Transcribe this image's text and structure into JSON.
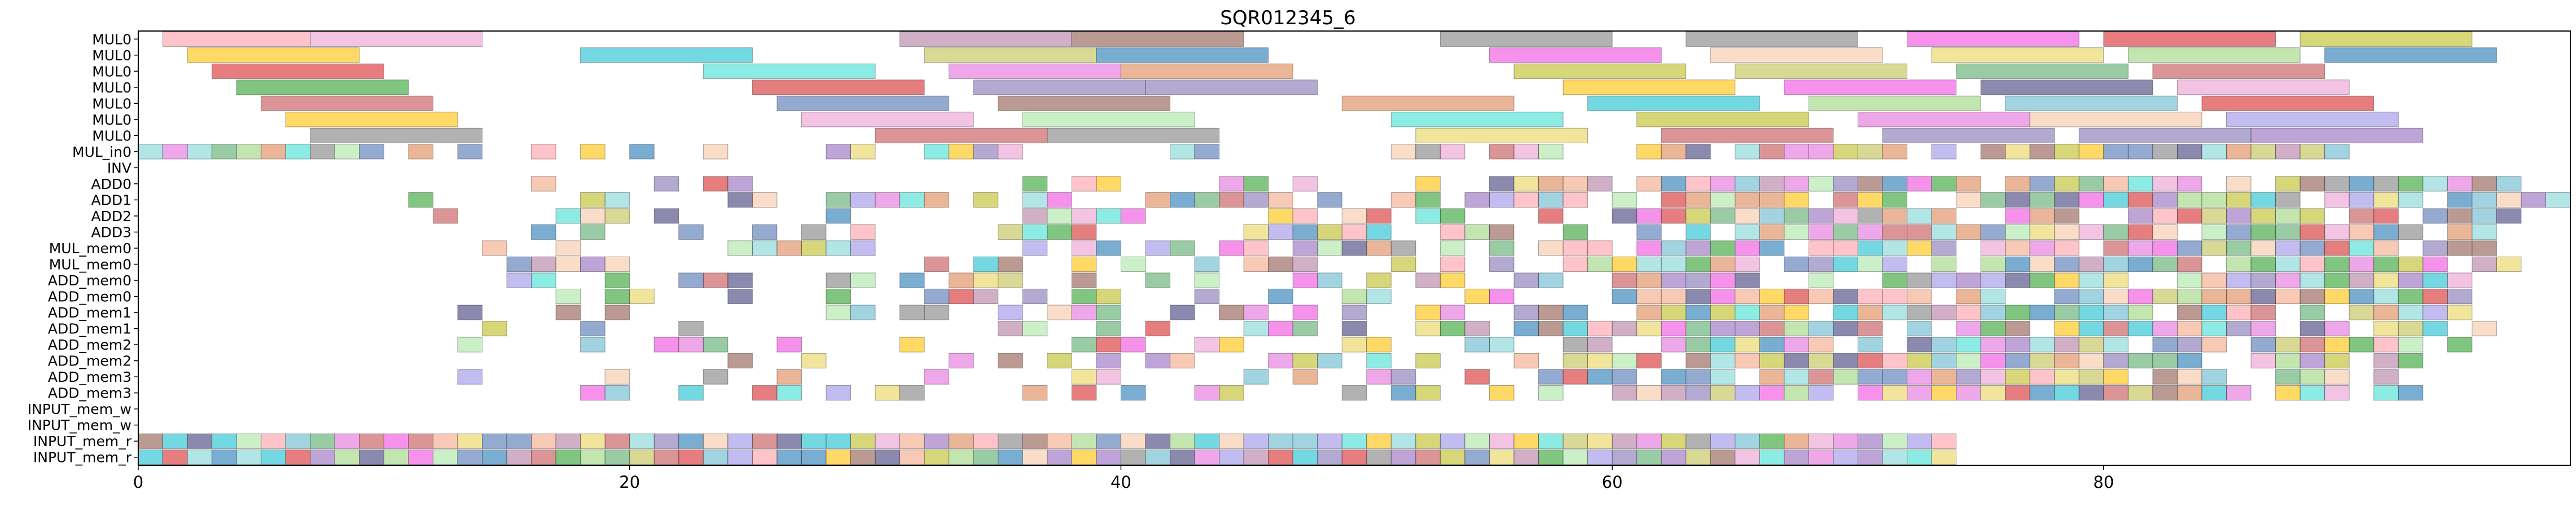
{
  "chart_data": {
    "type": "gantt",
    "title": "SQR012345_6",
    "xlabel": "",
    "ylabel": "",
    "xlim": [
      0,
      99
    ],
    "x_ticks": [
      0,
      20,
      40,
      60,
      80
    ],
    "grid": false,
    "legend": "none",
    "rows": [
      "MUL0",
      "MUL0",
      "MUL0",
      "MUL0",
      "MUL0",
      "MUL0",
      "MUL0",
      "MUL_in0",
      "INV",
      "ADD0",
      "ADD1",
      "ADD2",
      "ADD3",
      "MUL_mem0",
      "MUL_mem0",
      "ADD_mem0",
      "ADD_mem0",
      "ADD_mem1",
      "ADD_mem1",
      "ADD_mem2",
      "ADD_mem2",
      "ADD_mem3",
      "ADD_mem3",
      "INPUT_mem_w",
      "INPUT_mem_w",
      "INPUT_mem_r",
      "INPUT_mem_r"
    ],
    "palette": [
      "#7fd4d4",
      "#f4a582",
      "#9b8fe8",
      "#e36cd9",
      "#3f3a78",
      "#f04ae0",
      "#9bd37b",
      "#e8d45a",
      "#55a868",
      "#ea9bcf",
      "#bfbf4f",
      "#c44e52",
      "#8172b2",
      "#64b5cd",
      "#dd8452",
      "#4c72b0",
      "#a8e6a3",
      "#f7c6a3",
      "#b07aa1",
      "#ff9da7",
      "#7f7f7f",
      "#bcbd22",
      "#17becf",
      "#1f77b4",
      "#ffbf00",
      "#40e0d0",
      "#d62728",
      "#2ca02c",
      "#9467bd",
      "#8c564b"
    ],
    "mul_bars": [
      [
        [
          1,
          7
        ],
        [
          7,
          14
        ],
        [
          31,
          38
        ],
        [
          38,
          45
        ],
        [
          53,
          60
        ],
        [
          63,
          70
        ],
        [
          72,
          79
        ],
        [
          80,
          87
        ],
        [
          88,
          95
        ]
      ],
      [
        [
          2,
          9
        ],
        [
          18,
          25
        ],
        [
          32,
          39
        ],
        [
          39,
          46
        ],
        [
          55,
          62
        ],
        [
          64,
          71
        ],
        [
          73,
          80
        ],
        [
          81,
          88
        ],
        [
          89,
          96
        ]
      ],
      [
        [
          3,
          10
        ],
        [
          23,
          30
        ],
        [
          33,
          40
        ],
        [
          40,
          47
        ],
        [
          56,
          63
        ],
        [
          65,
          72
        ],
        [
          74,
          81
        ],
        [
          82,
          89
        ]
      ],
      [
        [
          4,
          11
        ],
        [
          25,
          32
        ],
        [
          34,
          41
        ],
        [
          41,
          48
        ],
        [
          58,
          65
        ],
        [
          67,
          74
        ],
        [
          75,
          82
        ],
        [
          83,
          90
        ]
      ],
      [
        [
          5,
          12
        ],
        [
          26,
          33
        ],
        [
          35,
          42
        ],
        [
          49,
          56
        ],
        [
          59,
          66
        ],
        [
          68,
          75
        ],
        [
          76,
          83
        ],
        [
          84,
          91
        ]
      ],
      [
        [
          6,
          13
        ],
        [
          27,
          34
        ],
        [
          36,
          43
        ],
        [
          51,
          58
        ],
        [
          61,
          68
        ],
        [
          70,
          77
        ],
        [
          77,
          84
        ],
        [
          85,
          92
        ]
      ],
      [
        [
          7,
          14
        ],
        [
          30,
          37
        ],
        [
          37,
          44
        ],
        [
          52,
          59
        ],
        [
          62,
          69
        ],
        [
          71,
          78
        ],
        [
          79,
          86
        ],
        [
          86,
          93
        ]
      ]
    ],
    "activity_ranges": {
      "MUL_in0": [
        0,
        90
      ],
      "ADD0": [
        9,
        97
      ],
      "ADD1": [
        11,
        99
      ],
      "ADD2": [
        10,
        97
      ],
      "ADD3": [
        13,
        96
      ],
      "MUL_mem0": [
        10,
        97
      ],
      "MUL_mem0_b": [
        10,
        97
      ],
      "ADD_mem0": [
        15,
        95
      ],
      "ADD_mem0_b": [
        17,
        95
      ],
      "ADD_mem1": [
        13,
        95
      ],
      "ADD_mem1_b": [
        14,
        96
      ],
      "ADD_mem2": [
        13,
        95
      ],
      "ADD_mem2_b": [
        24,
        94
      ],
      "ADD_mem3": [
        13,
        93
      ],
      "ADD_mem3_b": [
        17,
        93
      ],
      "INPUT_mem_r": [
        0,
        74
      ],
      "INPUT_mem_r_b": [
        0,
        74
      ]
    }
  }
}
